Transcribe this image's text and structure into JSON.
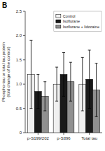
{
  "chart_data": {
    "type": "bar",
    "title": "B",
    "categories": [
      "p-S199/202",
      "p-S396",
      "Total tau"
    ],
    "series": [
      {
        "name": "Control",
        "color": "#f0f0f0",
        "values": [
          1.2,
          1.0,
          1.0
        ],
        "errors": [
          0.7,
          0.35,
          0.55
        ]
      },
      {
        "name": "Isoflurane",
        "color": "#1a1a1a",
        "values": [
          0.85,
          1.2,
          1.1
        ],
        "errors": [
          0.35,
          0.45,
          0.6
        ]
      },
      {
        "name": "Isoflurane + lidocaine",
        "color": "#909090",
        "values": [
          0.75,
          1.05,
          0.88
        ],
        "errors": [
          0.3,
          0.4,
          0.55
        ]
      }
    ],
    "ylabel": "Phospho-tau or total tau protein\n(fold change of the control)",
    "ylim": [
      0.0,
      2.5
    ],
    "yticks": [
      0,
      0.5,
      {
        "value": 1.0,
        "label": "1.0"
      },
      1.5,
      {
        "value": 2.0,
        "label": "2.0"
      },
      2.5
    ],
    "legend": "upper right"
  }
}
